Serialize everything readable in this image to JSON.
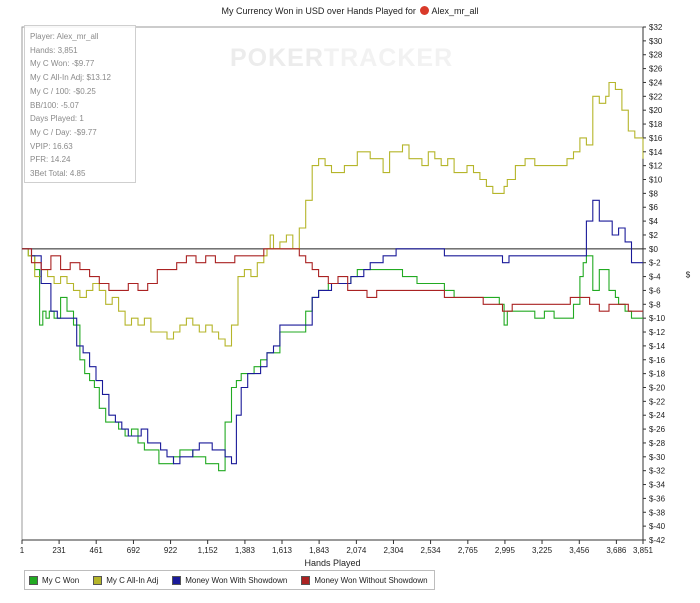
{
  "title": {
    "text": "My Currency Won in USD over Hands Played for",
    "player": "Alex_mr_all"
  },
  "watermark": {
    "part1": "POKER",
    "part2": "TRACKER"
  },
  "stats": [
    "Player: Alex_mr_all",
    "Hands: 3,851",
    "My C Won: -$9.77",
    "My C All-In Adj: $13.12",
    "My C / 100: -$0.25",
    "BB/100: -5.07",
    "Days Played: 1",
    "My C / Day: -$9.77",
    "VPIP: 16.63",
    "PFR: 14.24",
    "3Bet Total: 4.85"
  ],
  "chart_data": {
    "type": "line",
    "title": "My Currency Won in USD over Hands Played for Alex_mr_all",
    "xlabel": "Hands Played",
    "ylabel": "$",
    "xlim": [
      1,
      3851
    ],
    "ylim": [
      -42,
      32
    ],
    "x_ticks": [
      "1",
      "231",
      "461",
      "692",
      "922",
      "1,152",
      "1,383",
      "1,613",
      "1,843",
      "2,074",
      "2,304",
      "2,534",
      "2,765",
      "2,995",
      "3,225",
      "3,456",
      "3,686",
      "3,851"
    ],
    "y_ticks": [
      "$32",
      "$30",
      "$28",
      "$26",
      "$24",
      "$22",
      "$20",
      "$18",
      "$16",
      "$14",
      "$12",
      "$10",
      "$8",
      "$6",
      "$4",
      "$2",
      "$0",
      "$-2",
      "$-4",
      "$-6",
      "$-8",
      "$-10",
      "$-12",
      "$-14",
      "$-16",
      "$-18",
      "$-20",
      "$-22",
      "$-24",
      "$-26",
      "$-28",
      "$-30",
      "$-32",
      "$-34",
      "$-36",
      "$-38",
      "$-40",
      "$-42"
    ],
    "grid": false,
    "legend": "bottom-left",
    "series": [
      {
        "name": "My C Won",
        "color": "#22aa22",
        "x": [
          1,
          40,
          80,
          110,
          130,
          150,
          170,
          200,
          240,
          280,
          320,
          360,
          390,
          420,
          450,
          480,
          520,
          560,
          600,
          640,
          680,
          720,
          760,
          800,
          850,
          900,
          940,
          980,
          1000,
          1020,
          1060,
          1100,
          1140,
          1180,
          1220,
          1260,
          1300,
          1330,
          1360,
          1400,
          1440,
          1480,
          1520,
          1560,
          1600,
          1640,
          1680,
          1720,
          1760,
          1800,
          1840,
          1900,
          1960,
          2000,
          2040,
          2080,
          2120,
          2160,
          2200,
          2240,
          2280,
          2320,
          2360,
          2400,
          2450,
          2500,
          2560,
          2620,
          2680,
          2740,
          2800,
          2860,
          2920,
          2960,
          2990,
          3010,
          3060,
          3120,
          3180,
          3240,
          3300,
          3340,
          3380,
          3420,
          3460,
          3480,
          3500,
          3540,
          3580,
          3620,
          3640,
          3680,
          3700,
          3740,
          3780,
          3820,
          3851
        ],
        "y": [
          0,
          -1,
          -3,
          -11,
          -9,
          -10,
          -9,
          -10,
          -7,
          -9,
          -11,
          -16,
          -18,
          -19,
          -20,
          -23,
          -25,
          -25,
          -26,
          -27,
          -26,
          -28,
          -29,
          -29,
          -31,
          -31,
          -30,
          -29,
          -29,
          -29,
          -30,
          -30,
          -31,
          -31,
          -32,
          -25,
          -20,
          -19,
          -18,
          -18,
          -17,
          -16,
          -15,
          -15,
          -12,
          -12,
          -12,
          -12,
          -9,
          -7,
          -6,
          -5,
          -5,
          -5,
          -4,
          -3,
          -3,
          -3,
          -3,
          -3,
          -3,
          -3,
          -4,
          -4,
          -5,
          -5,
          -5,
          -6,
          -7,
          -7,
          -7,
          -7,
          -7,
          -8,
          -11,
          -9,
          -9,
          -9,
          -10,
          -9,
          -10,
          -10,
          -10,
          -8,
          -4,
          -2,
          -1,
          -6,
          -3,
          -3,
          -6,
          -7,
          -8,
          -9,
          -10,
          -10,
          -10
        ]
      },
      {
        "name": "My C All-In Adj",
        "color": "#b5b52a",
        "x": [
          1,
          40,
          80,
          120,
          160,
          200,
          240,
          280,
          320,
          360,
          400,
          440,
          480,
          520,
          560,
          600,
          640,
          680,
          720,
          760,
          800,
          850,
          900,
          940,
          980,
          1020,
          1060,
          1100,
          1140,
          1180,
          1220,
          1260,
          1300,
          1340,
          1380,
          1420,
          1460,
          1500,
          1520,
          1540,
          1560,
          1600,
          1640,
          1680,
          1720,
          1760,
          1800,
          1840,
          1880,
          1920,
          1960,
          2000,
          2040,
          2080,
          2120,
          2160,
          2200,
          2240,
          2280,
          2320,
          2360,
          2400,
          2440,
          2480,
          2520,
          2560,
          2600,
          2640,
          2680,
          2720,
          2760,
          2800,
          2840,
          2880,
          2920,
          2960,
          2990,
          3010,
          3060,
          3120,
          3180,
          3240,
          3300,
          3340,
          3380,
          3420,
          3460,
          3500,
          3540,
          3580,
          3620,
          3640,
          3680,
          3720,
          3760,
          3800,
          3851
        ],
        "y": [
          0,
          -1,
          -4,
          -3,
          -4,
          -5,
          -4,
          -5,
          -6,
          -7,
          -6,
          -5,
          -6,
          -8,
          -7,
          -9,
          -11,
          -10,
          -11,
          -10,
          -12,
          -12,
          -13,
          -12,
          -11,
          -10,
          -11,
          -12,
          -11,
          -12,
          -13,
          -14,
          -11,
          -4,
          -3,
          -4,
          -2,
          -1,
          0,
          2,
          0,
          1,
          2,
          0,
          3,
          7,
          12,
          13,
          12,
          11,
          11,
          12,
          12,
          14,
          14,
          13,
          13,
          11,
          14,
          14,
          15,
          13,
          13,
          12,
          14,
          13,
          12,
          13,
          11,
          11,
          12,
          11,
          10,
          9,
          8,
          8,
          9,
          10,
          12,
          13,
          12,
          12,
          12,
          12,
          13,
          14,
          16,
          15,
          22,
          21,
          22,
          24,
          23,
          20,
          17,
          16,
          13
        ]
      },
      {
        "name": "Money Won With Showdown",
        "color": "#1a1a99",
        "x": [
          1,
          60,
          120,
          180,
          220,
          260,
          300,
          340,
          380,
          420,
          460,
          500,
          540,
          580,
          620,
          660,
          700,
          740,
          780,
          820,
          860,
          900,
          940,
          980,
          1020,
          1060,
          1100,
          1140,
          1180,
          1220,
          1260,
          1300,
          1330,
          1360,
          1400,
          1440,
          1480,
          1520,
          1560,
          1600,
          1640,
          1680,
          1720,
          1760,
          1800,
          1840,
          1880,
          1920,
          1960,
          2000,
          2040,
          2080,
          2120,
          2160,
          2200,
          2240,
          2280,
          2320,
          2380,
          2440,
          2500,
          2560,
          2620,
          2680,
          2740,
          2800,
          2860,
          2920,
          2980,
          3020,
          3060,
          3120,
          3180,
          3240,
          3300,
          3340,
          3380,
          3420,
          3460,
          3500,
          3540,
          3580,
          3620,
          3660,
          3700,
          3740,
          3780,
          3851
        ],
        "y": [
          0,
          -1,
          -5,
          -9,
          -10,
          -10,
          -10,
          -14,
          -15,
          -17,
          -19,
          -21,
          -24,
          -25,
          -26,
          -27,
          -27,
          -26,
          -28,
          -28,
          -29,
          -30,
          -31,
          -30,
          -30,
          -29,
          -28,
          -28,
          -29,
          -29,
          -30,
          -31,
          -24,
          -20,
          -18,
          -18,
          -17,
          -15,
          -14,
          -11,
          -11,
          -11,
          -11,
          -11,
          -7,
          -6,
          -6,
          -5,
          -5,
          -5,
          -4,
          -4,
          -3,
          -2,
          -2,
          -1,
          -1,
          0,
          0,
          0,
          0,
          0,
          -1,
          -1,
          -1,
          -1,
          -1,
          -1,
          -2,
          -1,
          -1,
          -1,
          -1,
          -1,
          -1,
          -1,
          -1,
          -1,
          -1,
          4,
          7,
          4,
          4,
          2,
          3,
          1,
          -2,
          -2
        ]
      },
      {
        "name": "Money Won Without Showdown",
        "color": "#aa2222",
        "x": [
          1,
          60,
          120,
          180,
          240,
          300,
          360,
          420,
          480,
          540,
          600,
          660,
          720,
          780,
          840,
          900,
          960,
          1020,
          1080,
          1140,
          1200,
          1260,
          1320,
          1380,
          1440,
          1500,
          1560,
          1620,
          1680,
          1720,
          1760,
          1800,
          1840,
          1900,
          1960,
          2020,
          2080,
          2140,
          2200,
          2260,
          2320,
          2380,
          2440,
          2500,
          2560,
          2620,
          2680,
          2740,
          2800,
          2860,
          2920,
          2980,
          3040,
          3100,
          3160,
          3220,
          3280,
          3340,
          3400,
          3460,
          3520,
          3580,
          3640,
          3700,
          3760,
          3820,
          3851
        ],
        "y": [
          0,
          -2,
          -3,
          -1,
          -3,
          -2,
          -3,
          -4,
          -5,
          -6,
          -6,
          -5,
          -6,
          -5,
          -3,
          -3,
          -2,
          -1,
          -2,
          -1,
          -2,
          -2,
          -1,
          -1,
          -1,
          0,
          0,
          0,
          0,
          -1,
          -2,
          -3,
          -4,
          -5,
          -4,
          -6,
          -6,
          -7,
          -6,
          -6,
          -6,
          -6,
          -6,
          -6,
          -6,
          -7,
          -7,
          -7,
          -7,
          -8,
          -8,
          -9,
          -8,
          -8,
          -8,
          -8,
          -8,
          -8,
          -7,
          -7,
          -8,
          -9,
          -8,
          -8,
          -9,
          -9,
          -9
        ]
      }
    ]
  }
}
